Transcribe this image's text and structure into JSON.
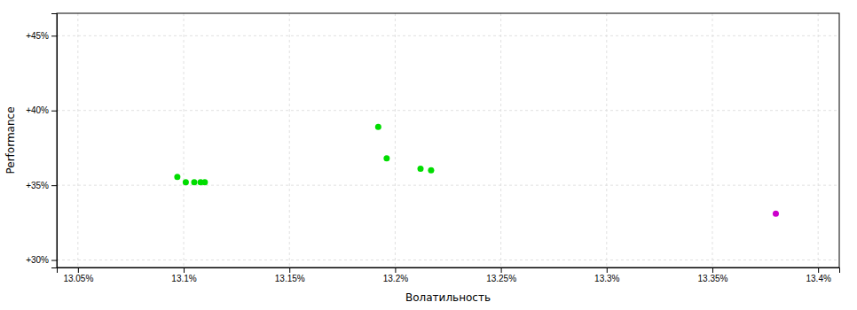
{
  "chart_data": {
    "type": "scatter",
    "xlabel": "Волатильность",
    "ylabel": "Performance",
    "xlim": [
      13.04,
      13.41
    ],
    "ylim": [
      29.5,
      46.5
    ],
    "xticks": [
      {
        "value": 13.05,
        "label": "13.05%"
      },
      {
        "value": 13.1,
        "label": "13.1%"
      },
      {
        "value": 13.15,
        "label": "13.15%"
      },
      {
        "value": 13.2,
        "label": "13.2%"
      },
      {
        "value": 13.25,
        "label": "13.25%"
      },
      {
        "value": 13.3,
        "label": "13.3%"
      },
      {
        "value": 13.35,
        "label": "13.35%"
      },
      {
        "value": 13.4,
        "label": "13.4%"
      }
    ],
    "yticks": [
      {
        "value": 30,
        "label": "+30%"
      },
      {
        "value": 35,
        "label": "+35%"
      },
      {
        "value": 40,
        "label": "+40%"
      },
      {
        "value": 45,
        "label": "+45%"
      }
    ],
    "grid": true,
    "series": [
      {
        "color": "#00dd00",
        "x": [
          13.097,
          13.101,
          13.105,
          13.108,
          13.11,
          13.192,
          13.196,
          13.212,
          13.217
        ],
        "values": [
          35.55,
          35.2,
          35.2,
          35.2,
          35.2,
          38.9,
          36.8,
          36.1,
          36.0
        ]
      },
      {
        "color": "#cc00cc",
        "x": [
          13.38
        ],
        "values": [
          33.1
        ]
      }
    ]
  }
}
